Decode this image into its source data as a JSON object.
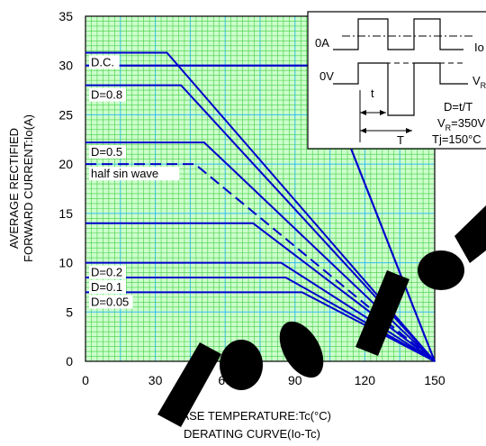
{
  "chart_data": {
    "type": "line",
    "xlabel": "CASE TEMPERATURE:Tc(°C)",
    "caption": "DERATING CURVE(Io-Tc)",
    "ylabel_lines": [
      "AVERAGE RECTIFIED",
      "FORWARD CURRENT:Io(A)"
    ],
    "xlim": [
      0,
      150
    ],
    "ylim": [
      0,
      35
    ],
    "x_ticks": [
      "0",
      "30",
      "60",
      "90",
      "120",
      "150"
    ],
    "y_ticks": [
      "0",
      "5",
      "10",
      "15",
      "20",
      "25",
      "30",
      "35"
    ],
    "grid": true,
    "series": [
      {
        "name": "D.C.",
        "style": "solid",
        "x": [
          0,
          35,
          150
        ],
        "y": [
          31.3,
          31.3,
          0
        ]
      },
      {
        "name": "",
        "style": "solid",
        "x": [
          0,
          100,
          150
        ],
        "y": [
          30,
          30,
          0
        ]
      },
      {
        "name": "D=0.8",
        "style": "solid",
        "x": [
          0,
          41,
          150
        ],
        "y": [
          28,
          28,
          0
        ]
      },
      {
        "name": "",
        "style": "solid",
        "x": [
          0,
          100,
          150
        ],
        "y": [
          30,
          30,
          0
        ]
      },
      {
        "name": "D=0.5",
        "style": "solid",
        "x": [
          0,
          51,
          150
        ],
        "y": [
          22.2,
          22.2,
          0
        ]
      },
      {
        "name": "half sin wave",
        "style": "dashed",
        "x": [
          0,
          47,
          150
        ],
        "y": [
          20,
          20,
          0
        ]
      },
      {
        "name": "",
        "style": "solid",
        "x": [
          0,
          72,
          150
        ],
        "y": [
          14,
          14,
          0
        ]
      },
      {
        "name": "D=0.2",
        "style": "solid",
        "x": [
          0,
          84,
          150
        ],
        "y": [
          10,
          10,
          0
        ]
      },
      {
        "name": "D=0.1",
        "style": "solid",
        "x": [
          0,
          86,
          150
        ],
        "y": [
          8.5,
          8.5,
          0
        ]
      },
      {
        "name": "D=0.05",
        "style": "solid",
        "x": [
          0,
          93,
          150
        ],
        "y": [
          7,
          7,
          0
        ]
      }
    ],
    "inset": {
      "labels": {
        "zero_amp": "0A",
        "zero_volt": "0V",
        "io": "Io",
        "vr_sym": "V",
        "vr_sub": "R",
        "t_small": "t",
        "t_big": "T",
        "duty": "D=t/T",
        "vr_value_sym": "V",
        "vr_value_sub": "R",
        "vr_value": "=350V",
        "tj": "Tj=150°C"
      }
    }
  }
}
